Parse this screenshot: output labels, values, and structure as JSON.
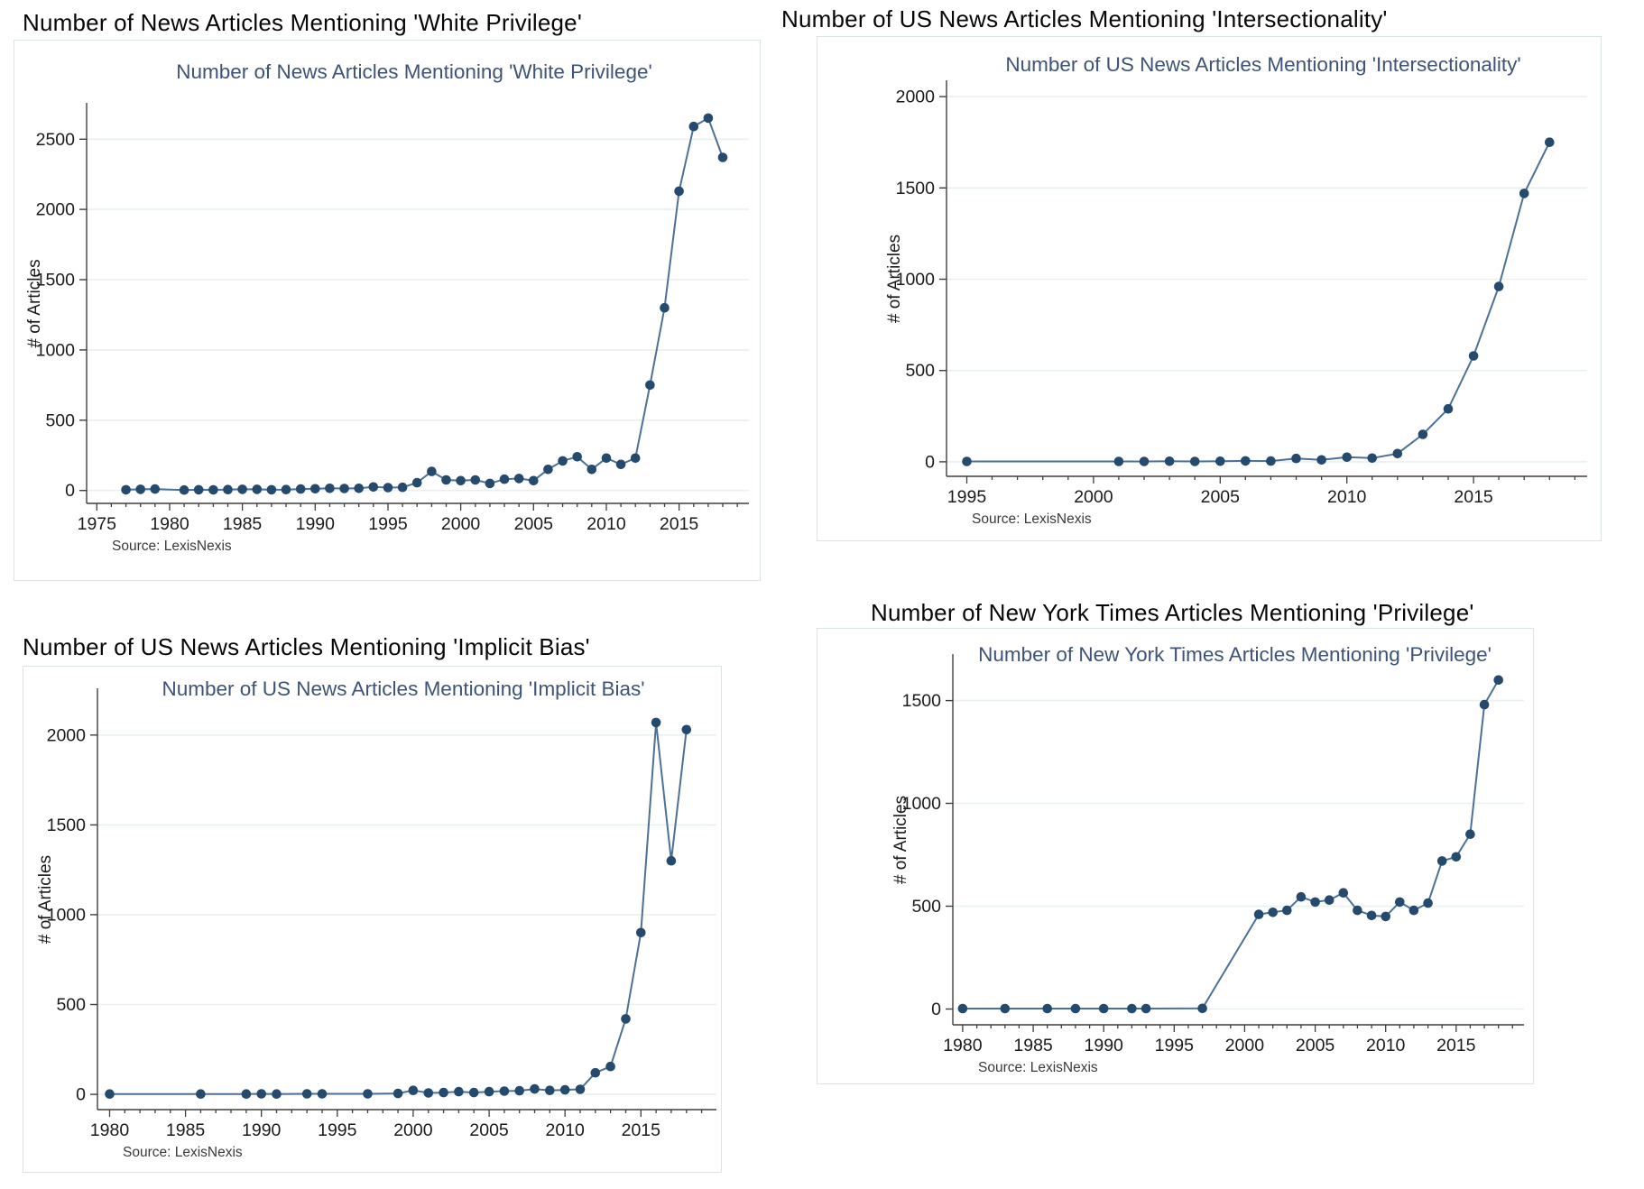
{
  "style": {
    "line_color": "#4d7196",
    "marker_color": "#254a6e",
    "grid_color": "#e8f1f0",
    "spine_color": "#3f3f3f",
    "tick_text_color": "#1b1b1b",
    "inner_title_color": "#3e5377",
    "source_text_color": "#3a3a3a",
    "box_border_color": "#dbe5e6",
    "background": "#ffffff"
  },
  "chart_data": [
    {
      "type": "line",
      "outer_title": "Number of News Articles Mentioning 'White Privilege'",
      "title": "Number of News Articles Mentioning 'White Privilege'",
      "ylabel": "# of Articles",
      "source": "Source: LexisNexis",
      "x": [
        1977,
        1978,
        1979,
        1981,
        1982,
        1983,
        1984,
        1985,
        1986,
        1987,
        1988,
        1989,
        1990,
        1991,
        1992,
        1993,
        1994,
        1995,
        1996,
        1997,
        1998,
        1999,
        2000,
        2001,
        2002,
        2003,
        2004,
        2005,
        2006,
        2007,
        2008,
        2009,
        2010,
        2011,
        2012,
        2013,
        2014,
        2015,
        2016,
        2017,
        2018
      ],
      "y": [
        5,
        8,
        10,
        3,
        5,
        4,
        6,
        8,
        8,
        5,
        6,
        10,
        12,
        15,
        14,
        15,
        25,
        20,
        22,
        55,
        135,
        75,
        70,
        75,
        50,
        80,
        85,
        70,
        150,
        210,
        240,
        150,
        230,
        185,
        230,
        750,
        1300,
        2130,
        2590,
        2650,
        2370
      ],
      "xticks": [
        1975,
        1980,
        1985,
        1990,
        1995,
        2000,
        2005,
        2010,
        2015
      ],
      "yticks": [
        0,
        500,
        1000,
        1500,
        2000,
        2500
      ],
      "xlim": [
        1974.3,
        2019.3
      ],
      "ylim": [
        -60,
        2720
      ],
      "grid": true,
      "legend": "none"
    },
    {
      "type": "line",
      "outer_title": "Number of US News Articles Mentioning 'Intersectionality'",
      "title": "Number of US News Articles Mentioning 'Intersectionality'",
      "ylabel": "# of Articles",
      "source": "Source: LexisNexis",
      "x": [
        1995,
        2001,
        2002,
        2003,
        2004,
        2005,
        2006,
        2007,
        2008,
        2009,
        2010,
        2011,
        2012,
        2013,
        2014,
        2015,
        2016,
        2017,
        2018
      ],
      "y": [
        2,
        2,
        2,
        3,
        2,
        3,
        5,
        4,
        18,
        10,
        25,
        20,
        45,
        150,
        290,
        580,
        960,
        1470,
        1750
      ],
      "xticks": [
        1995,
        2000,
        2005,
        2010,
        2015
      ],
      "yticks": [
        0,
        500,
        1000,
        1500,
        2000
      ],
      "xlim": [
        1994.2,
        2019.2
      ],
      "ylim": [
        -55,
        2060
      ],
      "grid": true,
      "legend": "none"
    },
    {
      "type": "line",
      "outer_title": "Number of US News Articles Mentioning 'Implicit Bias'",
      "title": "Number of US News Articles Mentioning 'Implicit Bias'",
      "ylabel": "# of Articles",
      "source": "Source: LexisNexis",
      "x": [
        1980,
        1986,
        1989,
        1990,
        1991,
        1993,
        1994,
        1997,
        1999,
        2000,
        2001,
        2002,
        2003,
        2004,
        2005,
        2006,
        2007,
        2008,
        2009,
        2010,
        2011,
        2012,
        2013,
        2014,
        2015,
        2016,
        2017,
        2018
      ],
      "y": [
        2,
        2,
        2,
        3,
        2,
        3,
        3,
        3,
        5,
        22,
        8,
        10,
        15,
        10,
        15,
        18,
        20,
        30,
        22,
        25,
        28,
        120,
        155,
        420,
        900,
        2070,
        1300,
        2030
      ],
      "xticks": [
        1980,
        1985,
        1990,
        1995,
        2000,
        2005,
        2010,
        2015
      ],
      "yticks": [
        0,
        500,
        1000,
        1500,
        2000
      ],
      "xlim": [
        1979.2,
        2019.5
      ],
      "ylim": [
        -60,
        2230
      ],
      "grid": true,
      "legend": "none"
    },
    {
      "type": "line",
      "outer_title": "Number of New York Times Articles Mentioning 'Privilege'",
      "title": "Number of New York Times Articles Mentioning 'Privilege'",
      "ylabel": "# of Articles",
      "source": "Source: LexisNexis",
      "x": [
        1980,
        1983,
        1986,
        1988,
        1990,
        1992,
        1993,
        1997,
        2001,
        2002,
        2003,
        2004,
        2005,
        2006,
        2007,
        2008,
        2009,
        2010,
        2011,
        2012,
        2013,
        2014,
        2015,
        2016,
        2017,
        2018
      ],
      "y": [
        2,
        2,
        2,
        2,
        2,
        2,
        2,
        3,
        460,
        470,
        480,
        545,
        520,
        530,
        565,
        480,
        455,
        450,
        520,
        480,
        515,
        720,
        740,
        850,
        1480,
        1600
      ],
      "xticks": [
        1980,
        1985,
        1990,
        1995,
        2000,
        2005,
        2010,
        2015
      ],
      "yticks": [
        0,
        500,
        1000,
        1500
      ],
      "xlim": [
        1979.3,
        2019.3
      ],
      "ylim": [
        -55,
        1700
      ],
      "grid": true,
      "legend": "none"
    }
  ]
}
